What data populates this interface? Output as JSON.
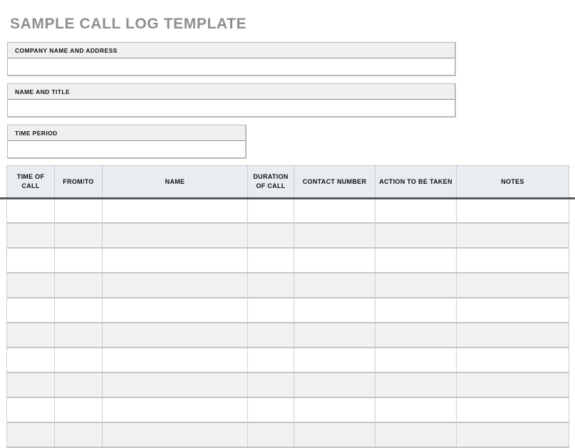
{
  "title": "SAMPLE CALL LOG TEMPLATE",
  "colors": {
    "title_gray": "#8e8e8e",
    "section_label_bg": "#f0f0f0",
    "table_header_bg": "#e9ecf1",
    "heavy_rule": "#595959",
    "row_stripe": "#f1f1f1",
    "grid_line": "#c6c6c6"
  },
  "sections": [
    {
      "label": "COMPANY NAME AND ADDRESS",
      "value": ""
    },
    {
      "label": "NAME AND TITLE",
      "value": ""
    },
    {
      "label": "TIME PERIOD",
      "value": ""
    }
  ],
  "table": {
    "columns": [
      "TIME OF CALL",
      "FROM/TO",
      "NAME",
      "DURATION OF CALL",
      "CONTACT NUMBER",
      "ACTION TO BE TAKEN",
      "NOTES"
    ],
    "rows": [
      [
        "",
        "",
        "",
        "",
        "",
        "",
        ""
      ],
      [
        "",
        "",
        "",
        "",
        "",
        "",
        ""
      ],
      [
        "",
        "",
        "",
        "",
        "",
        "",
        ""
      ],
      [
        "",
        "",
        "",
        "",
        "",
        "",
        ""
      ],
      [
        "",
        "",
        "",
        "",
        "",
        "",
        ""
      ],
      [
        "",
        "",
        "",
        "",
        "",
        "",
        ""
      ],
      [
        "",
        "",
        "",
        "",
        "",
        "",
        ""
      ],
      [
        "",
        "",
        "",
        "",
        "",
        "",
        ""
      ],
      [
        "",
        "",
        "",
        "",
        "",
        "",
        ""
      ],
      [
        "",
        "",
        "",
        "",
        "",
        "",
        ""
      ]
    ]
  }
}
